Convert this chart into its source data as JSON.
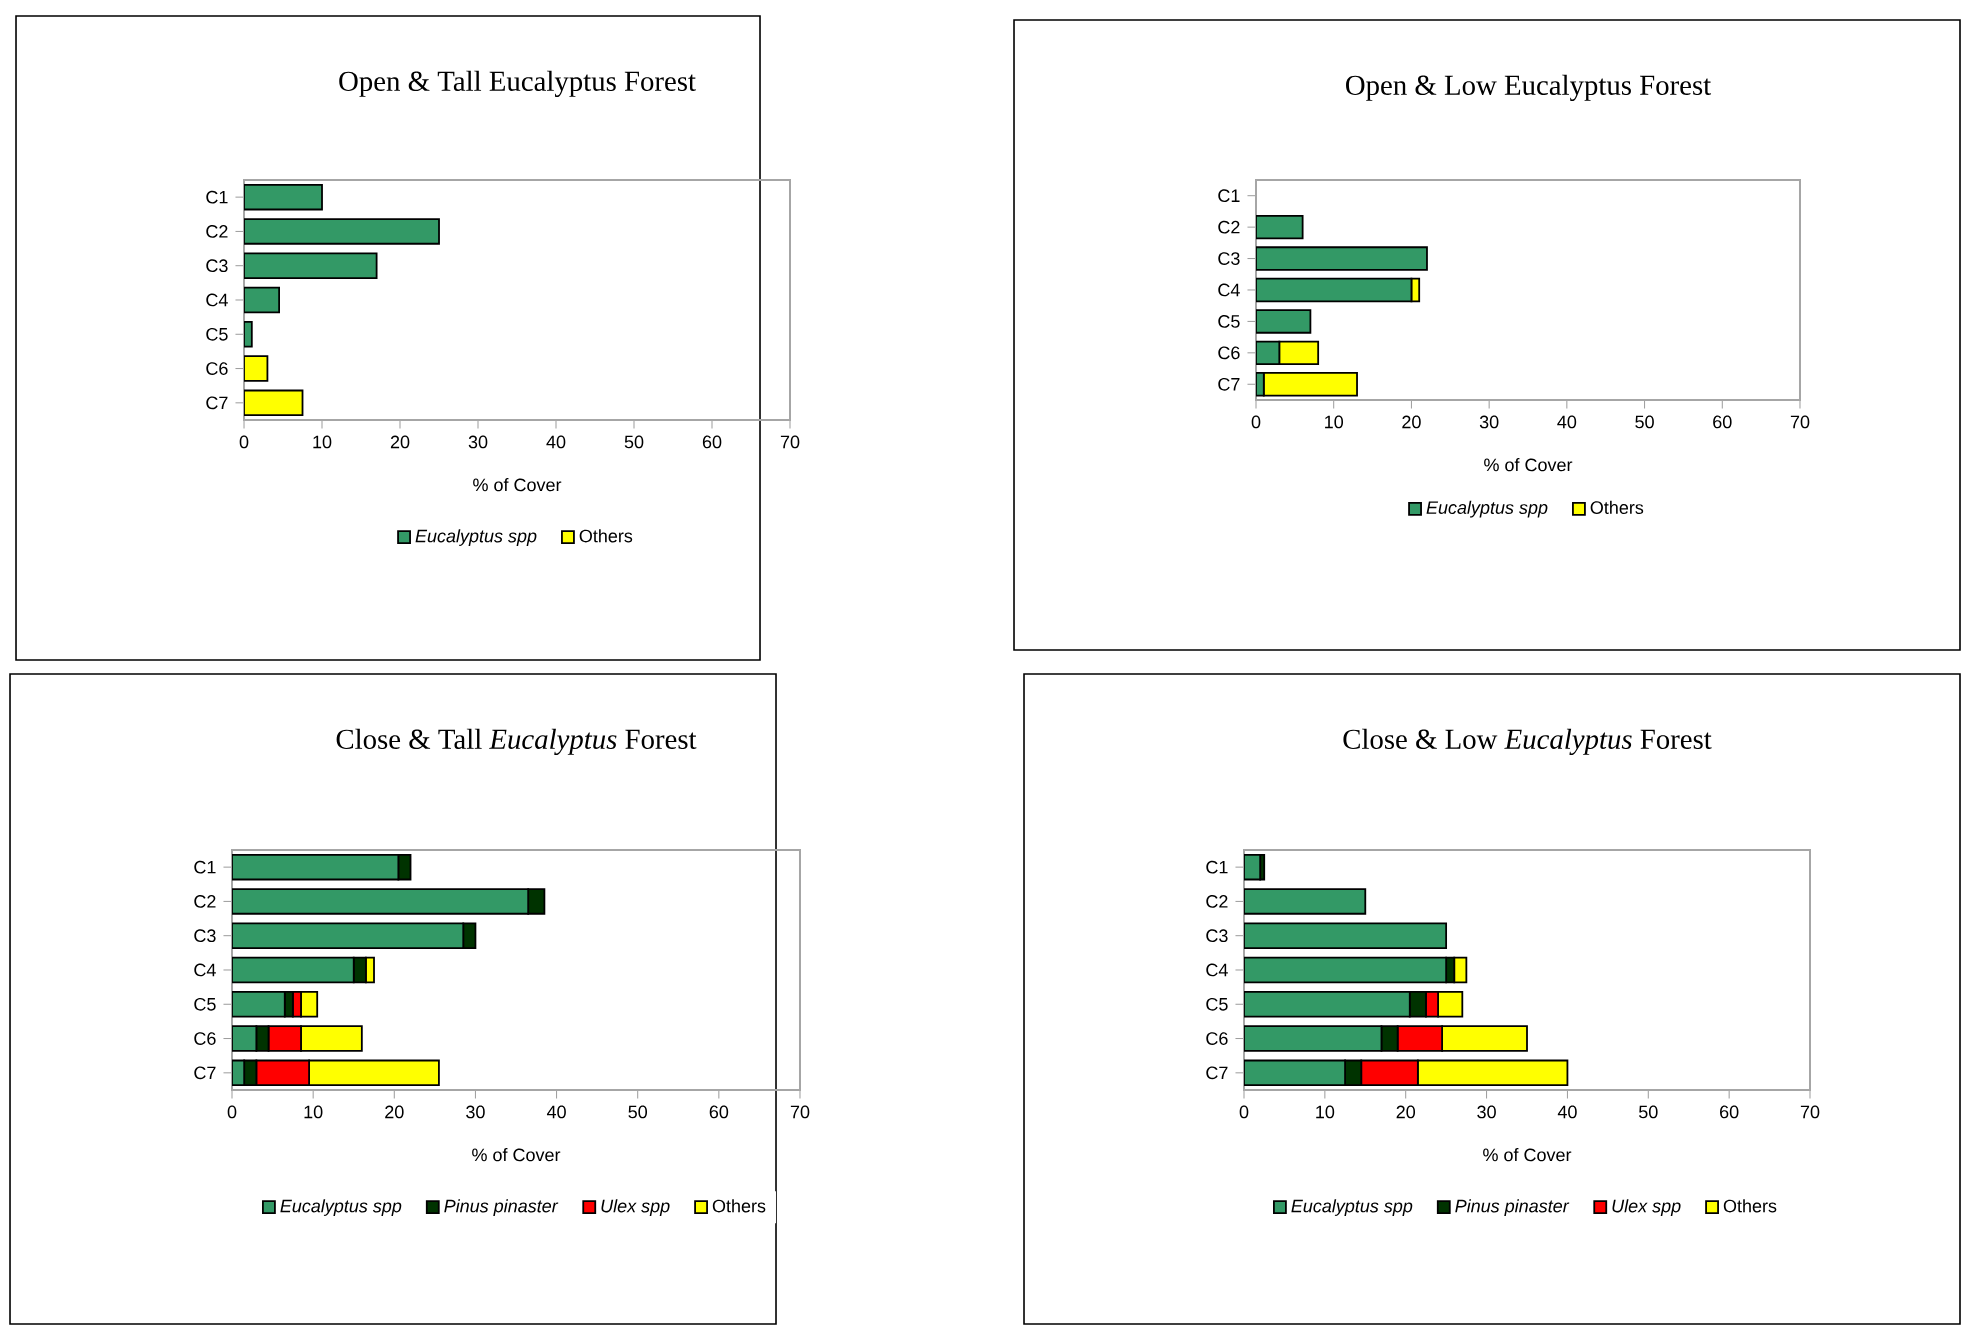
{
  "chart_data": [
    {
      "type": "bar",
      "orientation": "horizontal",
      "stacked": true,
      "title": "Open & Tall Eucalyptus Forest",
      "xlabel": "% of Cover",
      "categories": [
        "C1",
        "C2",
        "C3",
        "C4",
        "C5",
        "C6",
        "C7"
      ],
      "xlim": [
        0,
        70
      ],
      "xticks": [
        0,
        10,
        20,
        30,
        40,
        50,
        60,
        70
      ],
      "legend": "bottom",
      "grid": false,
      "series": [
        {
          "name": "*Eucalyptus spp*",
          "color": "#339966",
          "values": [
            10,
            25,
            17,
            4.5,
            1,
            0,
            0
          ]
        },
        {
          "name": "Others",
          "color": "#ffff00",
          "values": [
            0,
            0,
            0,
            0,
            0,
            3,
            7.5
          ]
        }
      ]
    },
    {
      "type": "bar",
      "orientation": "horizontal",
      "stacked": true,
      "title": "Open & Low Eucalyptus Forest",
      "xlabel": "% of Cover",
      "categories": [
        "C1",
        "C2",
        "C3",
        "C4",
        "C5",
        "C6",
        "C7"
      ],
      "xlim": [
        0,
        70
      ],
      "xticks": [
        0,
        10,
        20,
        30,
        40,
        50,
        60,
        70
      ],
      "legend": "bottom",
      "grid": false,
      "series": [
        {
          "name": "*Eucalyptus spp*",
          "color": "#339966",
          "values": [
            0,
            6,
            22,
            20,
            7,
            3,
            1
          ]
        },
        {
          "name": "Others",
          "color": "#ffff00",
          "values": [
            0,
            0,
            0,
            1,
            0,
            5,
            12
          ]
        }
      ]
    },
    {
      "type": "bar",
      "orientation": "horizontal",
      "stacked": true,
      "title": "Close & Tall *Eucalyptus* Forest",
      "xlabel": "% of Cover",
      "categories": [
        "C1",
        "C2",
        "C3",
        "C4",
        "C5",
        "C6",
        "C7"
      ],
      "xlim": [
        0,
        70
      ],
      "xticks": [
        0,
        10,
        20,
        30,
        40,
        50,
        60,
        70
      ],
      "legend": "bottom",
      "grid": false,
      "series": [
        {
          "name": "*Eucalyptus spp*",
          "color": "#339966",
          "values": [
            20.5,
            36.5,
            28.5,
            15,
            6.5,
            3,
            1.5
          ]
        },
        {
          "name": "*Pinus pinaster*",
          "color": "#003300",
          "values": [
            1.5,
            2,
            1.5,
            1.5,
            1,
            1.5,
            1.5
          ]
        },
        {
          "name": "*Ulex spp*",
          "color": "#ff0000",
          "values": [
            0,
            0,
            0,
            0,
            1,
            4,
            6.5
          ]
        },
        {
          "name": "Others",
          "color": "#ffff00",
          "values": [
            0,
            0,
            0,
            1,
            2,
            7.5,
            16
          ]
        }
      ]
    },
    {
      "type": "bar",
      "orientation": "horizontal",
      "stacked": true,
      "title": "Close & Low *Eucalyptus* Forest",
      "xlabel": "% of Cover",
      "categories": [
        "C1",
        "C2",
        "C3",
        "C4",
        "C5",
        "C6",
        "C7"
      ],
      "xlim": [
        0,
        70
      ],
      "xticks": [
        0,
        10,
        20,
        30,
        40,
        50,
        60,
        70
      ],
      "legend": "bottom",
      "grid": false,
      "series": [
        {
          "name": "*Eucalyptus spp*",
          "color": "#339966",
          "values": [
            2,
            15,
            25,
            25,
            20.5,
            17,
            12.5
          ]
        },
        {
          "name": "*Pinus pinaster*",
          "color": "#003300",
          "values": [
            0.5,
            0,
            0,
            1,
            2,
            2,
            2
          ]
        },
        {
          "name": "*Ulex spp*",
          "color": "#ff0000",
          "values": [
            0,
            0,
            0,
            0,
            1.5,
            5.5,
            7
          ]
        },
        {
          "name": "Others",
          "color": "#ffff00",
          "values": [
            0,
            0,
            0,
            1.5,
            3,
            10.5,
            18.5
          ]
        }
      ]
    }
  ]
}
